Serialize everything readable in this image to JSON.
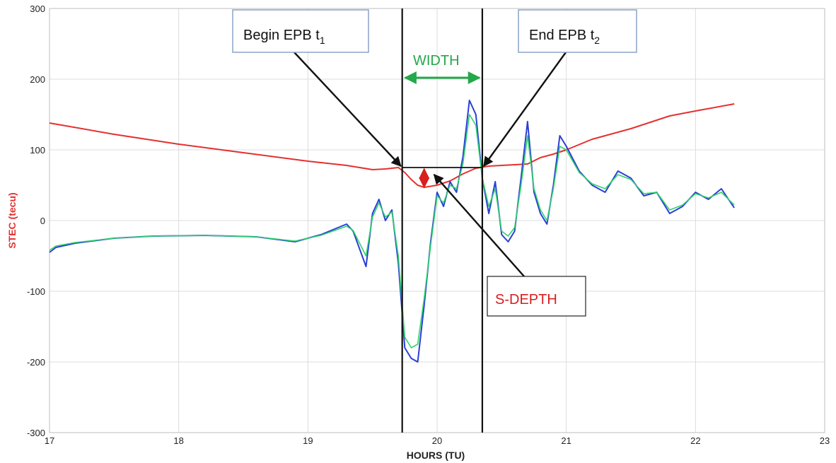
{
  "chart_data": {
    "type": "line",
    "xlabel": "HOURS (TU)",
    "ylabel": "STEC (tecu)",
    "xlim": [
      17,
      23
    ],
    "ylim": [
      -300,
      300
    ],
    "xticks": [
      17,
      18,
      19,
      20,
      21,
      22,
      23
    ],
    "yticks": [
      -300,
      -200,
      -100,
      0,
      100,
      200,
      300
    ],
    "grid": true,
    "colors": {
      "background": "#ffffff",
      "grid": "#dcdcdc",
      "red_series": "#e53030",
      "blue_series": "#2a3fd6",
      "green_series": "#2fd36a",
      "ylabel": "#e53030",
      "width_annotation": "#23a84a",
      "depth_annotation": "#d81e1e"
    },
    "series": [
      {
        "color": "red",
        "x": [
          17.0,
          17.5,
          18.0,
          18.5,
          19.0,
          19.3,
          19.5,
          19.6,
          19.7,
          19.75,
          19.8,
          19.85,
          19.9,
          20.0,
          20.1,
          20.2,
          20.3,
          20.4,
          20.5,
          20.6,
          20.7,
          20.8,
          20.9,
          21.0,
          21.2,
          21.5,
          21.8,
          22.0,
          22.3
        ],
        "y": [
          138,
          122,
          108,
          96,
          84,
          78,
          72,
          73,
          75,
          68,
          58,
          50,
          47,
          50,
          56,
          66,
          74,
          77,
          78,
          79,
          80,
          89,
          94,
          100,
          115,
          130,
          148,
          155,
          165
        ]
      },
      {
        "color": "blue",
        "x": [
          17.0,
          17.05,
          17.2,
          17.5,
          17.8,
          18.2,
          18.6,
          18.9,
          19.1,
          19.3,
          19.35,
          19.45,
          19.5,
          19.55,
          19.6,
          19.65,
          19.7,
          19.75,
          19.8,
          19.85,
          19.9,
          19.95,
          20.0,
          20.05,
          20.1,
          20.15,
          20.2,
          20.25,
          20.3,
          20.35,
          20.4,
          20.45,
          20.5,
          20.55,
          20.6,
          20.65,
          20.7,
          20.75,
          20.8,
          20.85,
          20.9,
          20.95,
          21.0,
          21.1,
          21.2,
          21.3,
          21.4,
          21.5,
          21.6,
          21.7,
          21.8,
          21.9,
          22.0,
          22.1,
          22.2,
          22.3
        ],
        "y": [
          -45,
          -38,
          -32,
          -25,
          -22,
          -21,
          -23,
          -30,
          -20,
          -5,
          -15,
          -65,
          10,
          30,
          0,
          15,
          -60,
          -180,
          -195,
          -200,
          -120,
          -30,
          40,
          20,
          55,
          40,
          90,
          170,
          150,
          60,
          10,
          55,
          -20,
          -30,
          -15,
          60,
          140,
          40,
          10,
          -5,
          50,
          120,
          105,
          70,
          50,
          40,
          70,
          60,
          35,
          40,
          10,
          20,
          40,
          30,
          45,
          18
        ]
      },
      {
        "color": "green",
        "x": [
          17.0,
          17.05,
          17.2,
          17.5,
          17.8,
          18.2,
          18.6,
          18.9,
          19.1,
          19.3,
          19.35,
          19.45,
          19.5,
          19.55,
          19.6,
          19.65,
          19.7,
          19.75,
          19.8,
          19.85,
          19.9,
          19.95,
          20.0,
          20.05,
          20.1,
          20.15,
          20.2,
          20.25,
          20.3,
          20.35,
          20.4,
          20.45,
          20.5,
          20.55,
          20.6,
          20.65,
          20.7,
          20.75,
          20.8,
          20.85,
          20.9,
          20.95,
          21.0,
          21.1,
          21.2,
          21.3,
          21.4,
          21.5,
          21.6,
          21.7,
          21.8,
          21.9,
          22.0,
          22.1,
          22.2,
          22.3
        ],
        "y": [
          -42,
          -36,
          -31,
          -25,
          -22,
          -21,
          -23,
          -29,
          -21,
          -8,
          -14,
          -50,
          5,
          25,
          5,
          12,
          -50,
          -165,
          -180,
          -175,
          -110,
          -35,
          35,
          25,
          50,
          45,
          80,
          150,
          135,
          60,
          20,
          45,
          -15,
          -22,
          -10,
          50,
          120,
          45,
          15,
          0,
          45,
          105,
          100,
          68,
          52,
          45,
          65,
          58,
          38,
          40,
          15,
          22,
          38,
          32,
          40,
          22
        ]
      }
    ],
    "annotations": {
      "t1_x": 19.73,
      "t2_x": 20.35,
      "baseline_y": 75,
      "depth_x": 19.9,
      "depth_y_top": 73,
      "depth_y_bottom": 47,
      "width_y": 200,
      "begin_label": "Begin EPB t",
      "begin_sub": "1",
      "end_label": "End EPB t",
      "end_sub": "2",
      "width_label": "WIDTH",
      "depth_label": "S-DEPTH"
    }
  }
}
